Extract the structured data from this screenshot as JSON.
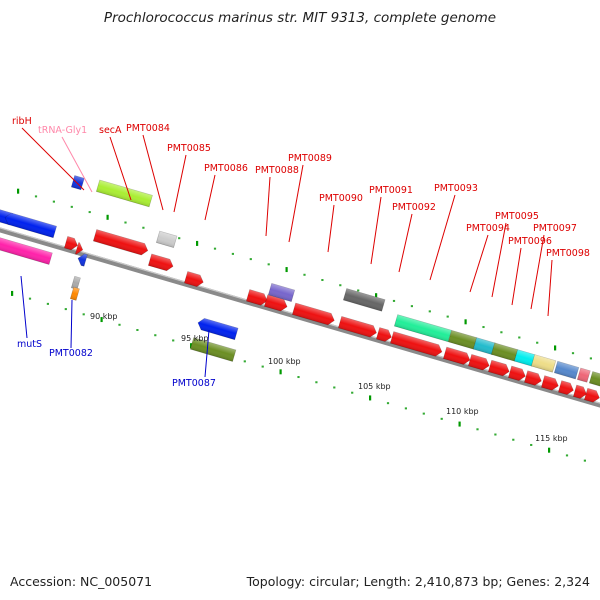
{
  "title": "Prochlorococcus marinus str. MIT 9313, complete genome",
  "accession": "Accession: NC_005071",
  "summary": "Topology: circular; Length: 2,410,873 bp; Genes: 2,324",
  "colors": {
    "backbone": "#8a8a8a",
    "tick": "#009900",
    "label_red": "#dd0000",
    "label_blue": "#0000cc",
    "label_pink": "#ff88aa"
  },
  "scale_labels": [
    "90 kbp",
    "95 kbp",
    "100 kbp",
    "105 kbp",
    "110 kbp",
    "115 kbp"
  ],
  "genes_above": [
    {
      "name": "ribH",
      "color": "red"
    },
    {
      "name": "tRNA-Gly1",
      "color": "pink"
    },
    {
      "name": "secA",
      "color": "red"
    },
    {
      "name": "PMT0084",
      "color": "red"
    },
    {
      "name": "PMT0085",
      "color": "red"
    },
    {
      "name": "PMT0086",
      "color": "red"
    },
    {
      "name": "PMT0088",
      "color": "red"
    },
    {
      "name": "PMT0089",
      "color": "red"
    },
    {
      "name": "PMT0090",
      "color": "red"
    },
    {
      "name": "PMT0091",
      "color": "red"
    },
    {
      "name": "PMT0092",
      "color": "red"
    },
    {
      "name": "PMT0093",
      "color": "red"
    },
    {
      "name": "PMT0094",
      "color": "red"
    },
    {
      "name": "PMT0095",
      "color": "red"
    },
    {
      "name": "PMT0096",
      "color": "red"
    },
    {
      "name": "PMT0097",
      "color": "red"
    },
    {
      "name": "PMT0098",
      "color": "red"
    }
  ],
  "genes_below": [
    {
      "name": "mutS",
      "color": "blue"
    },
    {
      "name": "PMT0082",
      "color": "blue"
    },
    {
      "name": "PMT0087",
      "color": "blue"
    }
  ]
}
